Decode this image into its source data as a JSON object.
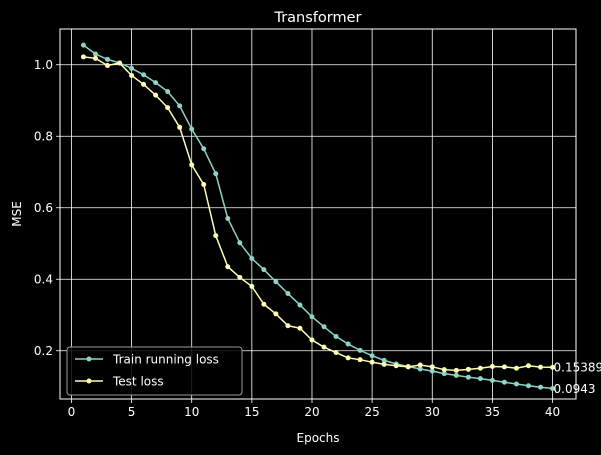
{
  "chart_data": {
    "type": "line",
    "title": "Transformer",
    "xlabel": "Epochs",
    "ylabel": "MSE",
    "xlim": [
      -0.95,
      41.95
    ],
    "ylim": [
      0.065,
      1.1
    ],
    "xticks": [
      0,
      5,
      10,
      15,
      20,
      25,
      30,
      35,
      40
    ],
    "yticks": [
      0.2,
      0.4,
      0.6,
      0.8,
      1.0
    ],
    "xtick_labels": [
      "0",
      "5",
      "10",
      "15",
      "20",
      "25",
      "30",
      "35",
      "40"
    ],
    "ytick_labels": [
      "0.2",
      "0.4",
      "0.6",
      "0.8",
      "1.0"
    ],
    "grid": true,
    "legend_position": "lower-left",
    "x": [
      1,
      2,
      3,
      4,
      5,
      6,
      7,
      8,
      9,
      10,
      11,
      12,
      13,
      14,
      15,
      16,
      17,
      18,
      19,
      20,
      21,
      22,
      23,
      24,
      25,
      26,
      27,
      28,
      29,
      30,
      31,
      32,
      33,
      34,
      35,
      36,
      37,
      38,
      39,
      40
    ],
    "series": [
      {
        "name": "Train running loss",
        "color": "#8dd3c7",
        "values": [
          1.055,
          1.03,
          1.015,
          1.005,
          0.99,
          0.972,
          0.95,
          0.925,
          0.885,
          0.82,
          0.765,
          0.695,
          0.57,
          0.502,
          0.458,
          0.427,
          0.393,
          0.36,
          0.328,
          0.295,
          0.267,
          0.24,
          0.219,
          0.201,
          0.186,
          0.173,
          0.163,
          0.156,
          0.149,
          0.143,
          0.136,
          0.131,
          0.126,
          0.122,
          0.117,
          0.112,
          0.107,
          0.102,
          0.098,
          0.0943
        ]
      },
      {
        "name": "Test loss",
        "color": "#ffffb3",
        "values": [
          1.022,
          1.018,
          0.998,
          1.005,
          0.97,
          0.945,
          0.915,
          0.88,
          0.825,
          0.72,
          0.665,
          0.522,
          0.435,
          0.405,
          0.38,
          0.33,
          0.303,
          0.27,
          0.263,
          0.23,
          0.21,
          0.195,
          0.18,
          0.175,
          0.168,
          0.162,
          0.158,
          0.155,
          0.16,
          0.155,
          0.147,
          0.145,
          0.148,
          0.151,
          0.156,
          0.155,
          0.151,
          0.158,
          0.154,
          0.15389
        ]
      }
    ],
    "annotations": [
      {
        "text": "0.15389",
        "x": 40,
        "y": 0.15389
      },
      {
        "text": "0.0943",
        "x": 40,
        "y": 0.0943
      }
    ]
  }
}
